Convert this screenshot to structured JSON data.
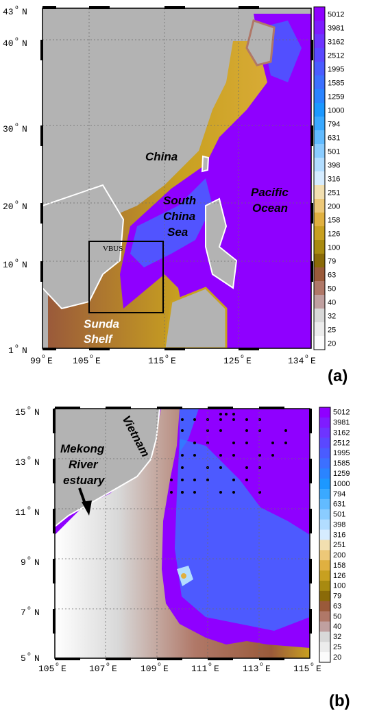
{
  "panels": [
    {
      "id": "a",
      "panel_label": "(a)",
      "lat_ticks": [
        {
          "value": "43",
          "hem": "N"
        },
        {
          "value": "40",
          "hem": "N"
        },
        {
          "value": "30",
          "hem": "N"
        },
        {
          "value": "20",
          "hem": "N"
        },
        {
          "value": "10",
          "hem": "N"
        },
        {
          "value": "1",
          "hem": "N"
        }
      ],
      "lon_ticks": [
        {
          "value": "99",
          "hem": "E"
        },
        {
          "value": "105",
          "hem": "E"
        },
        {
          "value": "115",
          "hem": "E"
        },
        {
          "value": "125",
          "hem": "E"
        },
        {
          "value": "134",
          "hem": "E"
        }
      ],
      "region_labels": {
        "china": "China",
        "south": "South",
        "china2": "China",
        "sea": "Sea",
        "pacific": "Pacific",
        "ocean": "Ocean",
        "sunda": "Sunda",
        "shelf": "Shelf"
      },
      "box_label": "VBUS"
    },
    {
      "id": "b",
      "panel_label": "(b)",
      "lat_ticks": [
        {
          "value": "15",
          "hem": "N"
        },
        {
          "value": "13",
          "hem": "N"
        },
        {
          "value": "11",
          "hem": "N"
        },
        {
          "value": "9",
          "hem": "N"
        },
        {
          "value": "7",
          "hem": "N"
        },
        {
          "value": "5",
          "hem": "N"
        }
      ],
      "lon_ticks": [
        {
          "value": "105",
          "hem": "E"
        },
        {
          "value": "107",
          "hem": "E"
        },
        {
          "value": "109",
          "hem": "E"
        },
        {
          "value": "111",
          "hem": "E"
        },
        {
          "value": "113",
          "hem": "E"
        },
        {
          "value": "115",
          "hem": "E"
        }
      ],
      "region_labels": {
        "vietnam": "Vietnam",
        "mekong": "Mekong",
        "river": "River",
        "estuary": "estuary"
      }
    }
  ],
  "colorbar": {
    "values": [
      "5012",
      "3981",
      "3162",
      "2512",
      "1995",
      "1585",
      "1259",
      "1000",
      "794",
      "631",
      "501",
      "398",
      "316",
      "251",
      "200",
      "158",
      "126",
      "100",
      "79",
      "63",
      "50",
      "40",
      "32",
      "25",
      "20"
    ],
    "colors": [
      "#8f00ff",
      "#7f1cff",
      "#6e34ff",
      "#5a48ff",
      "#4a5cff",
      "#3c70ff",
      "#2a84ff",
      "#1c98ff",
      "#3aa9ff",
      "#62bbff",
      "#8accff",
      "#b2ddff",
      "#d6ecff",
      "#f2dfb0",
      "#edc878",
      "#e0b040",
      "#c8a020",
      "#a88a10",
      "#8a6a08",
      "#9a5a3a",
      "#b07868",
      "#c0a0a0",
      "#d8d8d8",
      "#ececec",
      "#fbfbfb"
    ]
  },
  "colors": {
    "land": "#b3b3b3",
    "deep": "#8f00ff",
    "mid": "#3c70ff",
    "shelf": "#c8a020",
    "coast": "#ffffff",
    "label": "#000000",
    "label_white": "#ffffff"
  }
}
